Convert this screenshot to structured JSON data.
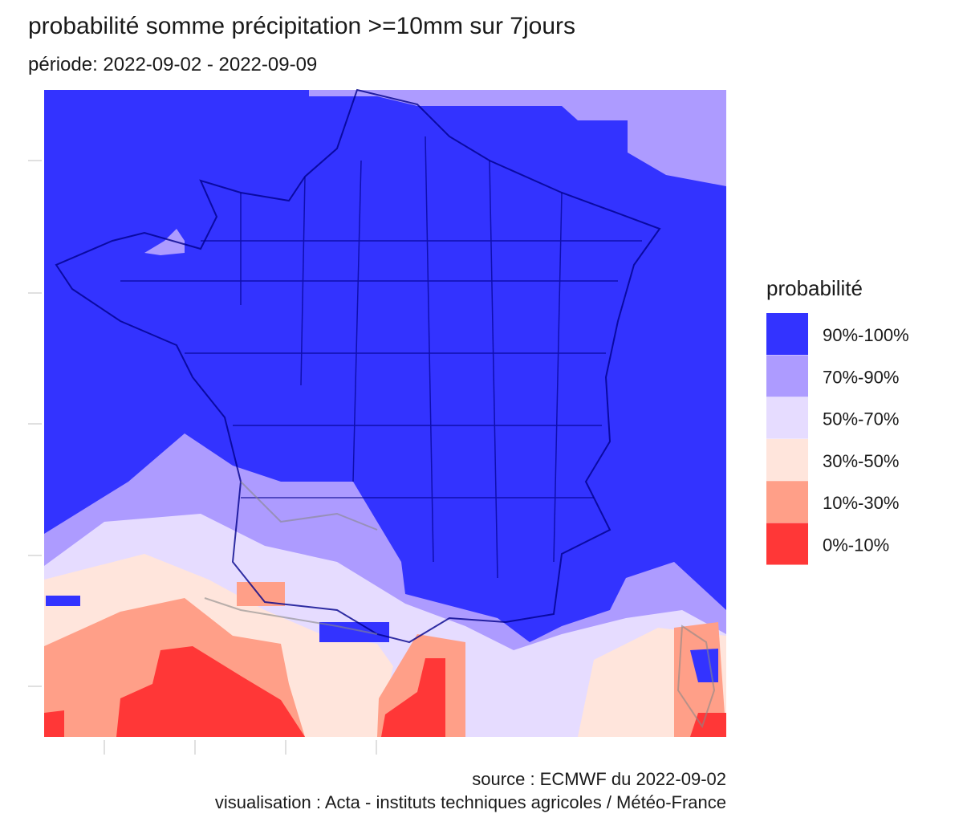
{
  "title": "probabilité somme précipitation >=10mm sur 7jours",
  "subtitle": "période: 2022-09-02 - 2022-09-09",
  "legend": {
    "title": "probabilité",
    "items": [
      {
        "label": "90%-100%",
        "color": "#3333ff"
      },
      {
        "label": "70%-90%",
        "color": "#ad9bff"
      },
      {
        "label": "50%-70%",
        "color": "#e6dcff"
      },
      {
        "label": "30%-50%",
        "color": "#ffe5dc"
      },
      {
        "label": "10%-30%",
        "color": "#ff9f88"
      },
      {
        "label": "0%-10%",
        "color": "#ff3737"
      }
    ]
  },
  "caption": {
    "source": "source : ECMWF du 2022-09-02",
    "credit": "visualisation : Acta - instituts techniques agricoles / Météo-France"
  }
}
